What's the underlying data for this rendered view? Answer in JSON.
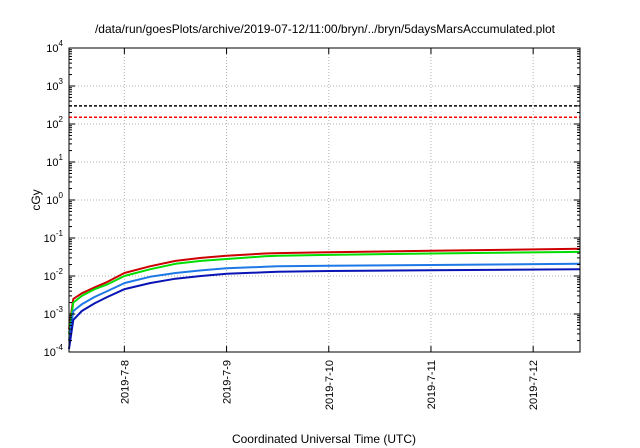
{
  "chart_data": {
    "type": "line",
    "title": "/data/run/goesPlots/archive/2019-07-12/11:00/bryn/../bryn/5daysMarsAccumulated.plot",
    "xlabel": "Coordinated Universal Time (UTC)",
    "ylabel": "cGy",
    "y_scale": "log",
    "grid": true,
    "x_range": [
      "2019-07-07 11:00",
      "2019-07-12 11:00"
    ],
    "x_ticks": [
      "2019-7-8",
      "2019-7-9",
      "2019-7-10",
      "2019-7-11",
      "2019-7-12"
    ],
    "y_ticks": [
      {
        "base": "10",
        "exp": "-4"
      },
      {
        "base": "10",
        "exp": "-3"
      },
      {
        "base": "10",
        "exp": "-2"
      },
      {
        "base": "10",
        "exp": "-1"
      },
      {
        "base": "10",
        "exp": "0"
      },
      {
        "base": "10",
        "exp": "1"
      },
      {
        "base": "10",
        "exp": "2"
      },
      {
        "base": "10",
        "exp": "3"
      },
      {
        "base": "10",
        "exp": "4"
      }
    ],
    "ylim": [
      0.0001,
      10000
    ],
    "reference_lines": [
      {
        "value": 300,
        "color": "#000000",
        "style": "dashed"
      },
      {
        "value": 150,
        "color": "#ff0000",
        "style": "dashed"
      }
    ],
    "series": [
      {
        "color": "#cc0000",
        "points": [
          [
            "2019-07-07 11:00",
            0.0004
          ],
          [
            "2019-07-07 12:00",
            0.0025
          ],
          [
            "2019-07-07 14:00",
            0.0035
          ],
          [
            "2019-07-07 17:00",
            0.005
          ],
          [
            "2019-07-07 20:00",
            0.007
          ],
          [
            "2019-07-08 00:00",
            0.012
          ],
          [
            "2019-07-08 06:00",
            0.018
          ],
          [
            "2019-07-08 12:00",
            0.025
          ],
          [
            "2019-07-08 18:00",
            0.03
          ],
          [
            "2019-07-09 00:00",
            0.034
          ],
          [
            "2019-07-09 09:00",
            0.039
          ],
          [
            "2019-07-09 12:00",
            0.04
          ],
          [
            "2019-07-10 00:00",
            0.042
          ],
          [
            "2019-07-11 00:00",
            0.046
          ],
          [
            "2019-07-12 11:00",
            0.052
          ]
        ]
      },
      {
        "color": "#00dd00",
        "points": [
          [
            "2019-07-07 11:00",
            0.0003
          ],
          [
            "2019-07-07 12:00",
            0.002
          ],
          [
            "2019-07-07 14:00",
            0.003
          ],
          [
            "2019-07-07 17:00",
            0.0045
          ],
          [
            "2019-07-07 20:00",
            0.006
          ],
          [
            "2019-07-08 00:00",
            0.01
          ],
          [
            "2019-07-08 06:00",
            0.015
          ],
          [
            "2019-07-08 12:00",
            0.021
          ],
          [
            "2019-07-08 18:00",
            0.025
          ],
          [
            "2019-07-09 00:00",
            0.028
          ],
          [
            "2019-07-09 09:00",
            0.033
          ],
          [
            "2019-07-09 12:00",
            0.034
          ],
          [
            "2019-07-10 00:00",
            0.036
          ],
          [
            "2019-07-11 00:00",
            0.039
          ],
          [
            "2019-07-12 11:00",
            0.043
          ]
        ]
      },
      {
        "color": "#1e78e6",
        "points": [
          [
            "2019-07-07 11:00",
            0.0002
          ],
          [
            "2019-07-07 12:00",
            0.0012
          ],
          [
            "2019-07-07 14:00",
            0.0018
          ],
          [
            "2019-07-07 17:00",
            0.0028
          ],
          [
            "2019-07-07 20:00",
            0.004
          ],
          [
            "2019-07-08 00:00",
            0.0065
          ],
          [
            "2019-07-08 06:00",
            0.0095
          ],
          [
            "2019-07-08 12:00",
            0.012
          ],
          [
            "2019-07-08 18:00",
            0.014
          ],
          [
            "2019-07-09 00:00",
            0.016
          ],
          [
            "2019-07-09 09:00",
            0.0175
          ],
          [
            "2019-07-09 12:00",
            0.018
          ],
          [
            "2019-07-10 00:00",
            0.0185
          ],
          [
            "2019-07-11 00:00",
            0.0195
          ],
          [
            "2019-07-12 11:00",
            0.021
          ]
        ]
      },
      {
        "color": "#0a14b4",
        "points": [
          [
            "2019-07-07 11:00",
            0.00012
          ],
          [
            "2019-07-07 12:00",
            0.0007
          ],
          [
            "2019-07-07 14:00",
            0.0012
          ],
          [
            "2019-07-07 17:00",
            0.0019
          ],
          [
            "2019-07-07 20:00",
            0.0028
          ],
          [
            "2019-07-08 00:00",
            0.0045
          ],
          [
            "2019-07-08 06:00",
            0.0065
          ],
          [
            "2019-07-08 12:00",
            0.0085
          ],
          [
            "2019-07-08 18:00",
            0.01
          ],
          [
            "2019-07-09 00:00",
            0.0115
          ],
          [
            "2019-07-09 09:00",
            0.0125
          ],
          [
            "2019-07-09 12:00",
            0.013
          ],
          [
            "2019-07-10 00:00",
            0.0135
          ],
          [
            "2019-07-11 00:00",
            0.0142
          ],
          [
            "2019-07-12 11:00",
            0.015
          ]
        ]
      }
    ]
  }
}
